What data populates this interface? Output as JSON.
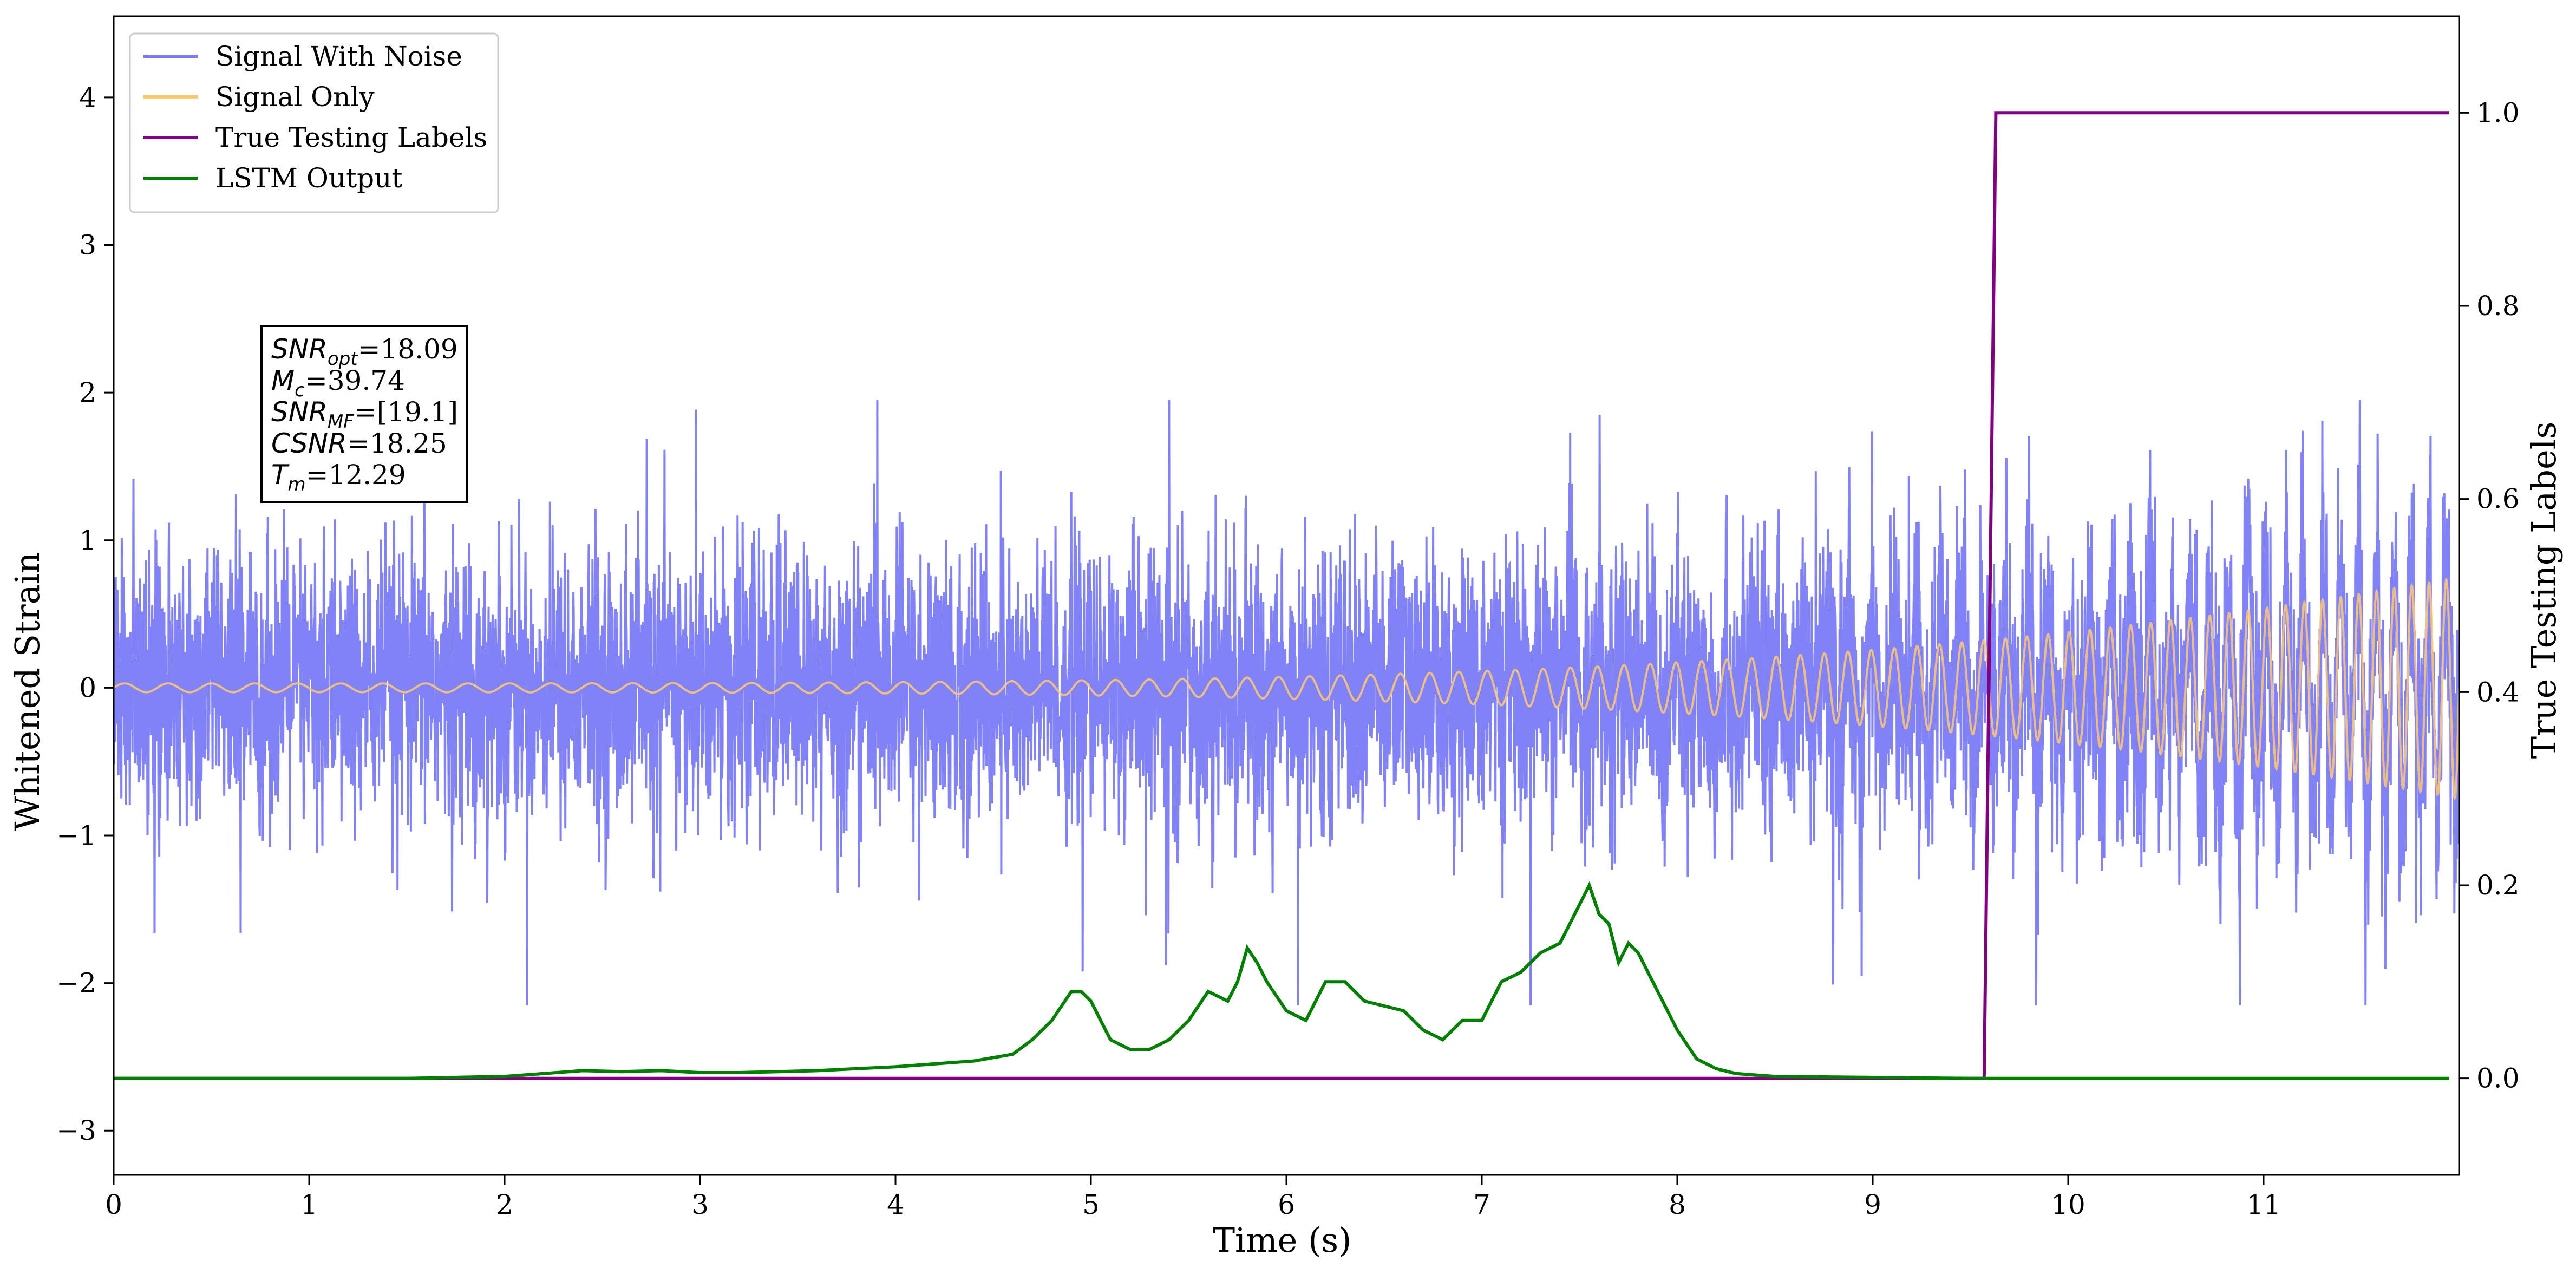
{
  "chart_data": {
    "type": "line",
    "title": "",
    "xlabel": "Time (s)",
    "ylabel": "Whitened Strain",
    "ylabel_right": "True Testing Labels",
    "xlim": [
      0,
      12
    ],
    "ylim": [
      -3.3,
      4.55
    ],
    "ylim_right": [
      -0.1,
      1.1
    ],
    "xticks": [
      0,
      1,
      2,
      3,
      4,
      5,
      6,
      7,
      8,
      9,
      10,
      11
    ],
    "xtick_labels": [
      "0",
      "1",
      "2",
      "3",
      "4",
      "5",
      "6",
      "7",
      "8",
      "9",
      "10",
      "11"
    ],
    "yticks": [
      -3,
      -2,
      -1,
      0,
      1,
      2,
      3,
      4
    ],
    "ytick_labels": [
      "−3",
      "−2",
      "−1",
      "0",
      "1",
      "2",
      "3",
      "4"
    ],
    "yticks_right": [
      0.0,
      0.2,
      0.4,
      0.6,
      0.8,
      1.0
    ],
    "ytick_labels_right": [
      "0.0",
      "0.2",
      "0.4",
      "0.6",
      "0.8",
      "1.0"
    ],
    "grid": false,
    "legend_position": "top-left",
    "series": [
      {
        "name": "Signal With Noise",
        "axis": "left",
        "color": "#7b7bf7",
        "description_of_values": "approximately gaussian noise, mean 0, std ~0.6, with spikes up to about +1.9 and down to about -2.15",
        "amplitude_std": 0.6,
        "x_range": [
          0,
          12
        ]
      },
      {
        "name": "Signal Only",
        "axis": "left",
        "color": "#ffc872",
        "chirp_amplitude_start": 0.03,
        "chirp_amplitude_end": 0.75,
        "x_range": [
          0,
          12
        ]
      },
      {
        "name": "True Testing Labels",
        "axis": "right",
        "color": "#800080",
        "x": [
          0,
          9.57,
          9.63,
          12
        ],
        "values": [
          0,
          0,
          1,
          1
        ]
      },
      {
        "name": "LSTM Output",
        "axis": "right",
        "color": "#008000",
        "x": [
          0,
          1.0,
          1.5,
          2.0,
          2.2,
          2.4,
          2.6,
          2.8,
          3.0,
          3.2,
          3.4,
          3.6,
          3.8,
          4.0,
          4.2,
          4.4,
          4.6,
          4.7,
          4.8,
          4.9,
          4.95,
          5.0,
          5.05,
          5.1,
          5.2,
          5.3,
          5.4,
          5.5,
          5.6,
          5.7,
          5.75,
          5.8,
          5.85,
          5.9,
          6.0,
          6.1,
          6.2,
          6.3,
          6.4,
          6.5,
          6.6,
          6.7,
          6.8,
          6.9,
          7.0,
          7.1,
          7.2,
          7.3,
          7.4,
          7.5,
          7.55,
          7.6,
          7.65,
          7.7,
          7.75,
          7.8,
          7.85,
          7.9,
          8.0,
          8.1,
          8.2,
          8.3,
          8.5,
          9.0,
          9.5,
          10,
          11,
          12
        ],
        "values": [
          0.0,
          0.0,
          0.0,
          0.002,
          0.005,
          0.008,
          0.007,
          0.008,
          0.006,
          0.006,
          0.007,
          0.008,
          0.01,
          0.012,
          0.015,
          0.018,
          0.025,
          0.04,
          0.06,
          0.09,
          0.09,
          0.08,
          0.06,
          0.04,
          0.03,
          0.03,
          0.04,
          0.06,
          0.09,
          0.08,
          0.1,
          0.135,
          0.12,
          0.1,
          0.07,
          0.06,
          0.1,
          0.1,
          0.08,
          0.075,
          0.07,
          0.05,
          0.04,
          0.06,
          0.06,
          0.1,
          0.11,
          0.13,
          0.14,
          0.18,
          0.2,
          0.17,
          0.16,
          0.12,
          0.14,
          0.13,
          0.11,
          0.09,
          0.05,
          0.02,
          0.01,
          0.005,
          0.002,
          0.001,
          0.0,
          0.0,
          0.0,
          0.0
        ]
      }
    ],
    "annotation": {
      "lines": [
        {
          "base": "SNR",
          "sub": "opt",
          "rest": "=18.09"
        },
        {
          "base": "M",
          "sub": "c",
          "rest": "=39.74"
        },
        {
          "base": "SNR",
          "sub": "MF",
          "rest": "=[19.1]"
        },
        {
          "base": "CSNR",
          "sub": "",
          "rest": "=18.25"
        },
        {
          "base": "T",
          "sub": "m",
          "rest": "=12.29"
        }
      ]
    }
  }
}
